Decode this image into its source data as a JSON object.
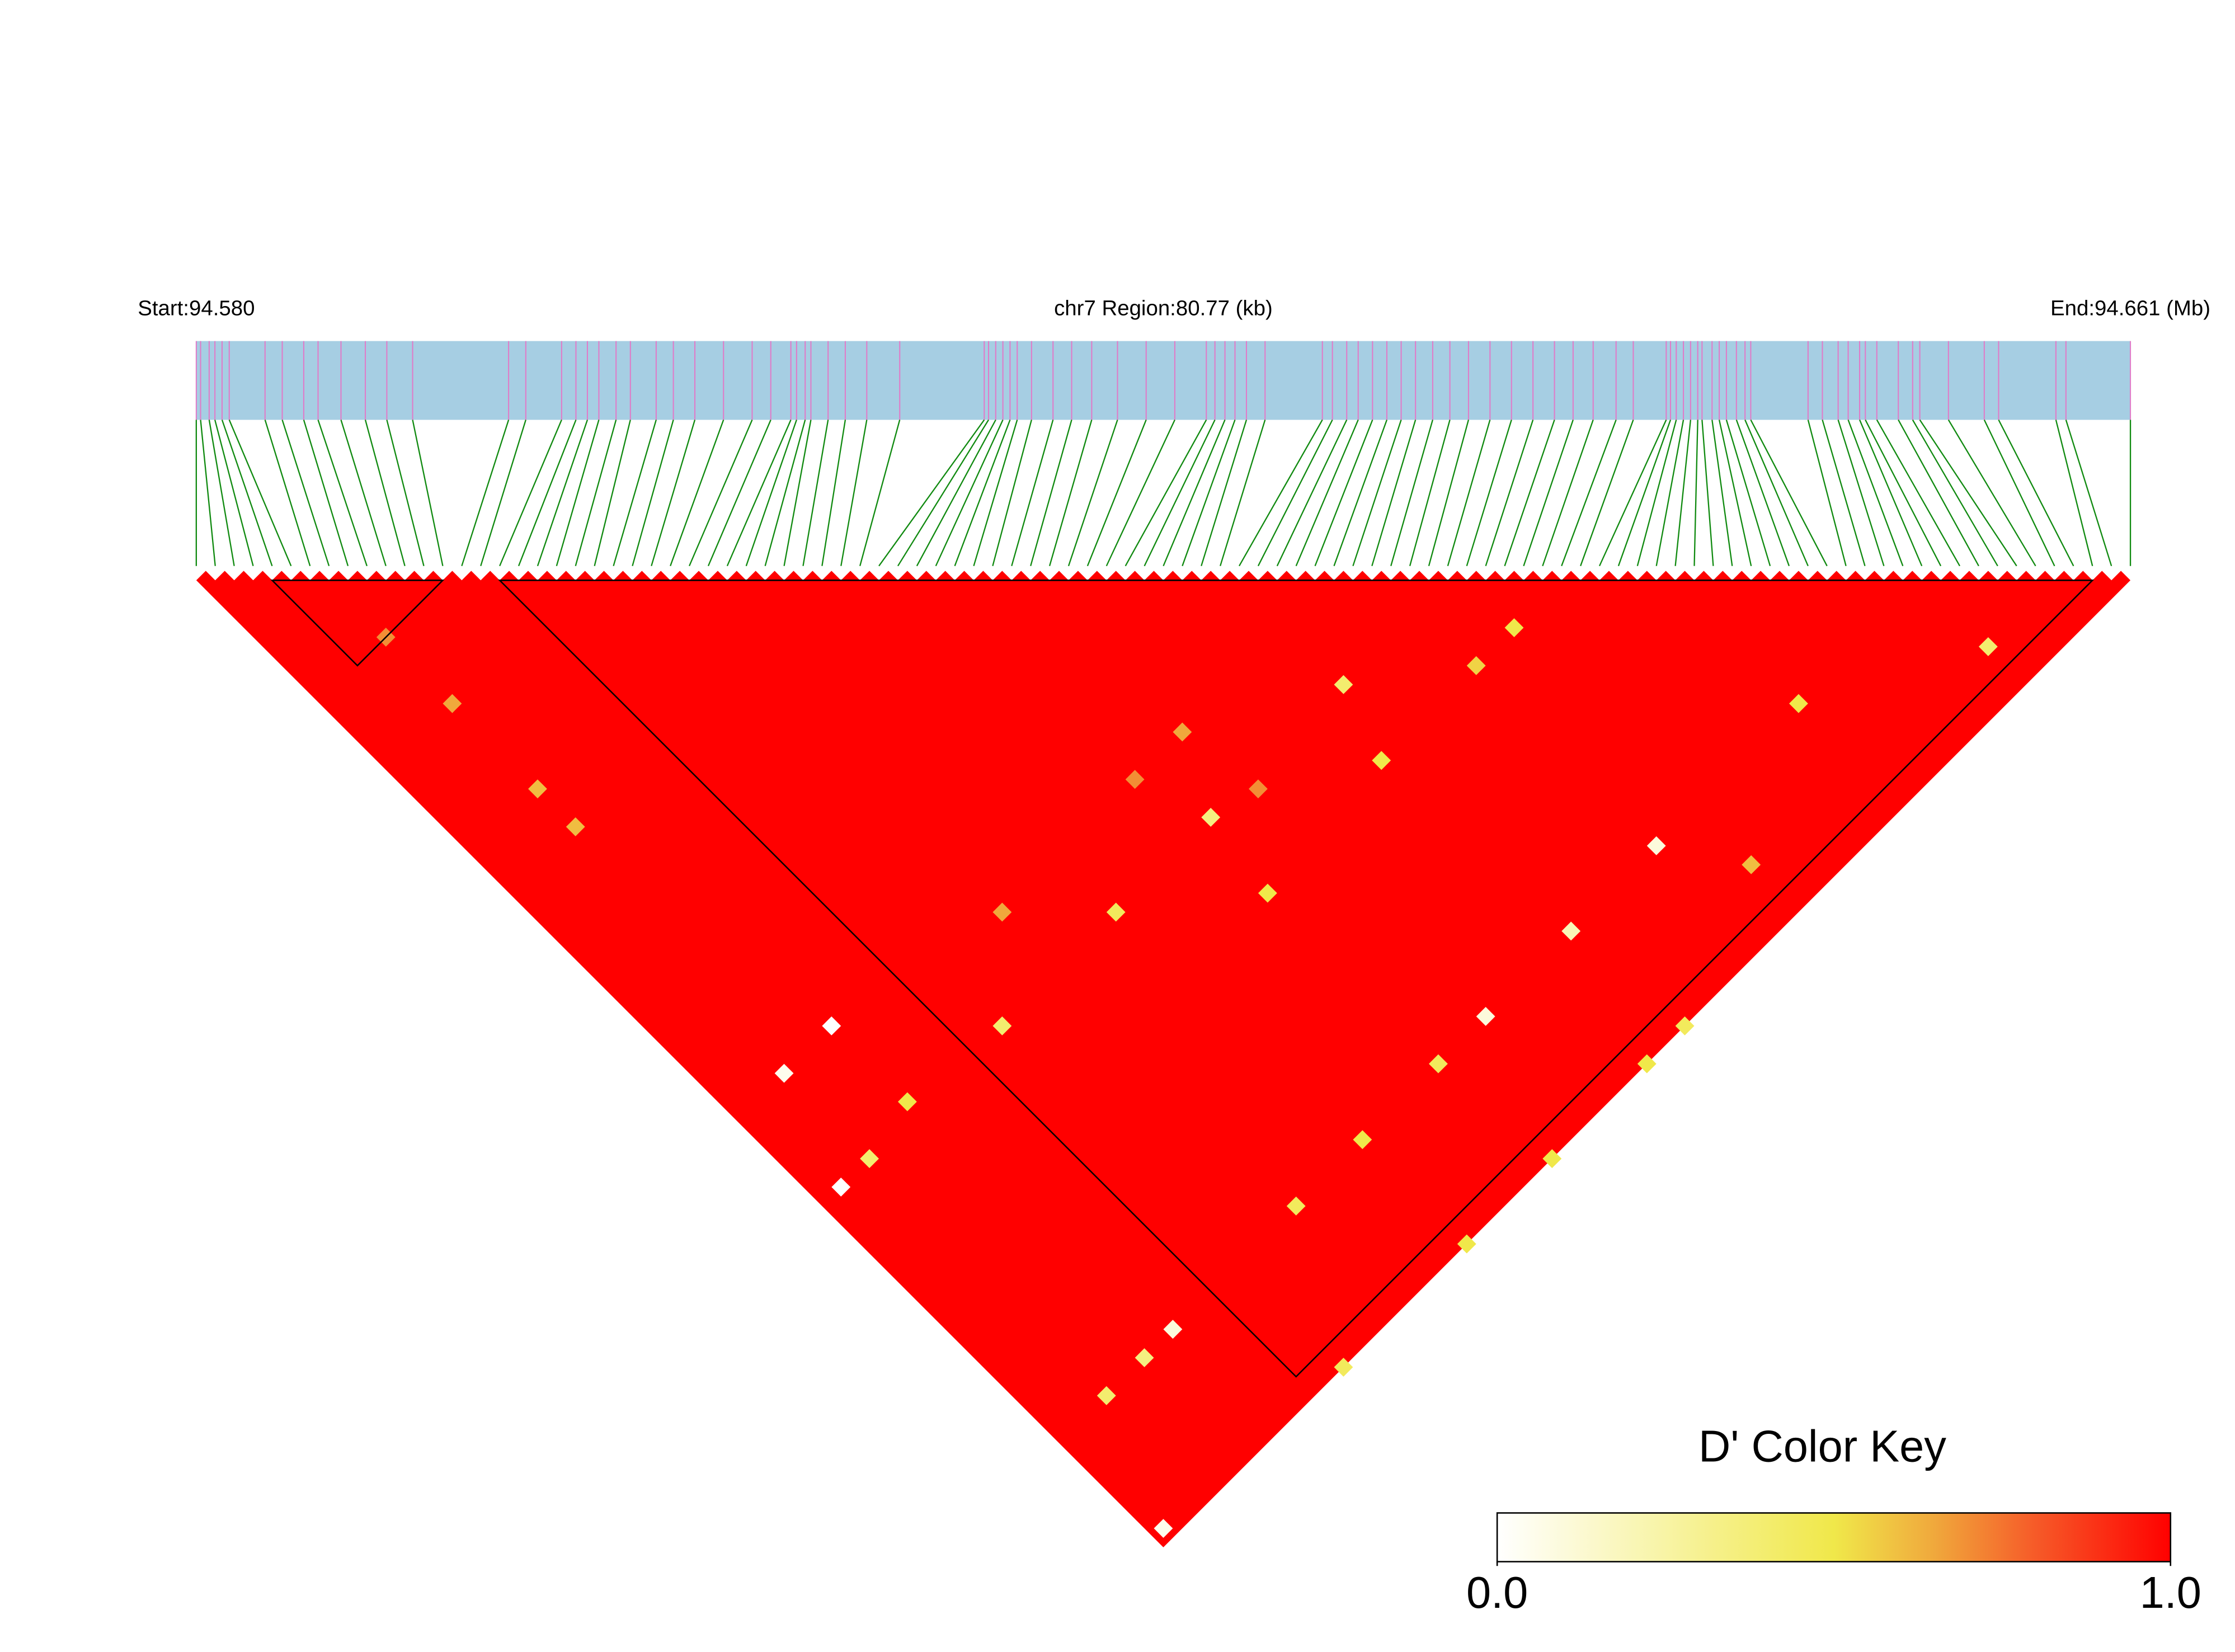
{
  "chart_data": {
    "type": "ld_heatmap",
    "start_label": "Start:94.580",
    "region_label": "chr7 Region:80.77 (kb)",
    "end_label": "End:94.661 (Mb)",
    "xlim": [
      94.58,
      94.661
    ],
    "x": [
      94.58,
      94.58018,
      94.58054,
      94.58078,
      94.58108,
      94.58138,
      94.58288,
      94.5836,
      94.5845,
      94.5851,
      94.58606,
      94.58708,
      94.58798,
      94.58906,
      94.59308,
      94.5938,
      94.5953,
      94.5959,
      94.59638,
      94.59686,
      94.59758,
      94.59818,
      94.59926,
      94.59998,
      94.60088,
      94.60208,
      94.60328,
      94.60406,
      94.6049,
      94.60514,
      94.6055,
      94.60574,
      94.60646,
      94.60718,
      94.60808,
      94.60946,
      94.613,
      94.61318,
      94.61348,
      94.61378,
      94.61408,
      94.61438,
      94.61498,
      94.61588,
      94.61666,
      94.6175,
      94.61858,
      94.61978,
      94.62098,
      94.6223,
      94.62266,
      94.62308,
      94.6235,
      94.62398,
      94.62476,
      94.62716,
      94.62758,
      94.62818,
      94.62866,
      94.62926,
      94.62986,
      94.63046,
      94.63106,
      94.63178,
      94.6325,
      94.63328,
      94.63418,
      94.63508,
      94.63598,
      94.63688,
      94.63766,
      94.6385,
      94.63946,
      94.64018,
      94.64156,
      94.64174,
      94.64198,
      94.64228,
      94.64258,
      94.64288,
      94.64306,
      94.64348,
      94.64378,
      94.64408,
      94.6445,
      94.64486,
      94.6451,
      94.6475,
      94.6481,
      94.64876,
      94.64918,
      94.64966,
      94.6499,
      94.65038,
      94.65128,
      94.65188,
      94.65218,
      94.65338,
      94.65488,
      94.65548,
      94.65788,
      94.6583,
      94.661
    ],
    "default_value": 1,
    "cells": [
      {
        "i": 10,
        "j": 57,
        "value": 0.0
      },
      {
        "i": 5,
        "j": 57,
        "value": 0.05
      },
      {
        "i": 2,
        "j": 66,
        "value": 0.0
      },
      {
        "i": 12,
        "j": 91,
        "value": 0.1
      },
      {
        "i": 1,
        "j": 101,
        "value": 0.05
      },
      {
        "i": 55,
        "j": 66,
        "value": 0.4
      },
      {
        "i": 41,
        "j": 66,
        "value": 0.35
      },
      {
        "i": 31,
        "j": 66,
        "value": 0.45
      },
      {
        "i": 19,
        "j": 66,
        "value": 0.4
      },
      {
        "i": 10,
        "j": 65,
        "value": 0.5
      },
      {
        "i": 25,
        "j": 91,
        "value": 0.45
      },
      {
        "i": 63,
        "j": 91,
        "value": 0.1
      },
      {
        "i": 54,
        "j": 91,
        "value": 0.2
      },
      {
        "i": 45,
        "j": 91,
        "value": 0.1
      },
      {
        "i": 40,
        "j": 91,
        "value": 0.45
      },
      {
        "i": 32,
        "j": 91,
        "value": 0.5
      },
      {
        "i": 91,
        "j": 98,
        "value": 0.4
      },
      {
        "i": 55,
        "j": 102,
        "value": 0.45
      },
      {
        "i": 51,
        "j": 102,
        "value": 0.5
      },
      {
        "i": 41,
        "j": 102,
        "value": 0.5
      },
      {
        "i": 19,
        "j": 102,
        "value": 0.45
      },
      {
        "i": 32,
        "j": 102,
        "value": 0.5
      },
      {
        "i": 40,
        "j": 73,
        "value": 0.5
      },
      {
        "i": 67,
        "j": 72,
        "value": 0.5
      },
      {
        "i": 63,
        "j": 72,
        "value": 0.55
      },
      {
        "i": 53,
        "j": 72,
        "value": 0.5
      },
      {
        "i": 25,
        "j": 60,
        "value": 0.65
      },
      {
        "i": 45,
        "j": 67,
        "value": 0.7
      },
      {
        "i": 7,
        "j": 29,
        "value": 0.6
      },
      {
        "i": 7,
        "j": 33,
        "value": 0.6
      },
      {
        "i": 7,
        "j": 20,
        "value": 0.65
      },
      {
        "i": 7,
        "j": 13,
        "value": 0.7
      },
      {
        "i": 5,
        "j": 66,
        "value": 0.4
      },
      {
        "i": 5,
        "j": 91,
        "value": 0.4
      },
      {
        "i": 9,
        "j": 91,
        "value": 0.35
      },
      {
        "i": 78,
        "j": 91,
        "value": 0.5
      },
      {
        "i": 67,
        "j": 97,
        "value": 0.6
      },
      {
        "i": 44,
        "j": 60,
        "value": 0.65
      },
      {
        "i": 39,
        "j": 60,
        "value": 0.7
      }
    ],
    "blocks": [
      [
        4,
        13
      ],
      [
        16,
        100
      ]
    ],
    "color_key": {
      "title": "D' Color Key",
      "lim": [
        0,
        1
      ],
      "ticks": [
        {
          "value": 0,
          "label": "0.0"
        },
        {
          "value": 1,
          "label": "1.0"
        }
      ]
    }
  }
}
